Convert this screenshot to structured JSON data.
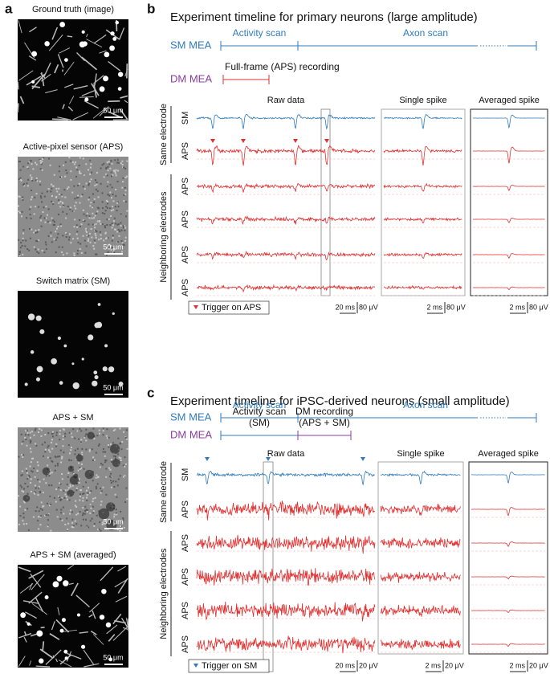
{
  "panel_a": {
    "label": "a",
    "images": [
      {
        "title": "Ground truth (image)",
        "scale": "50 μm"
      },
      {
        "title": "Active-pixel sensor (APS)",
        "scale": "50 μm"
      },
      {
        "title": "Switch matrix (SM)",
        "scale": "50 μm"
      },
      {
        "title": "APS + SM",
        "scale": "50 μm"
      },
      {
        "title": "APS + SM (averaged)",
        "scale": "50 μm"
      }
    ]
  },
  "panel_b": {
    "label": "b",
    "title": "Experiment timeline for primary neurons (large amplitude)",
    "sm_label": "SM MEA",
    "dm_label": "DM MEA",
    "activity_scan": [
      "Activity scan"
    ],
    "axon_scan": "Axon scan",
    "dm_recording": [
      "Full-frame (APS) recording"
    ],
    "columns": [
      "Raw data",
      "Single spike",
      "Averaged spike"
    ],
    "group_labels": [
      "Same electrode",
      "Neighboring electrodes"
    ],
    "rows": [
      "SM",
      "APS",
      "APS",
      "APS",
      "APS",
      "APS"
    ],
    "legend": "Trigger on APS",
    "scale_bars": [
      {
        "time": "20 ms",
        "volt": "80 μV"
      },
      {
        "time": "2 ms",
        "volt": "80 μV"
      },
      {
        "time": "2 ms",
        "volt": "80 μV"
      }
    ]
  },
  "panel_c": {
    "label": "c",
    "title": "Experiment timeline for iPSC-derived neurons (small amplitude)",
    "sm_label": "SM MEA",
    "dm_label": "DM MEA",
    "activity_scan": [
      "Activity scan"
    ],
    "axon_scan": "Axon scan",
    "dm_recording": [
      "Activity scan",
      "(SM)"
    ],
    "dm_recording_2": [
      "DM recording",
      "(APS + SM)"
    ],
    "columns": [
      "Raw data",
      "Single spike",
      "Averaged spike"
    ],
    "group_labels": [
      "Same electrode",
      "Neighboring electrodes"
    ],
    "rows": [
      "SM",
      "APS",
      "APS",
      "APS",
      "APS",
      "APS"
    ],
    "legend": "Trigger on SM",
    "scale_bars": [
      {
        "time": "20 ms",
        "volt": "20 μV"
      },
      {
        "time": "2 ms",
        "volt": "20 μV"
      },
      {
        "time": "2 ms",
        "volt": "20 μV"
      }
    ]
  }
}
